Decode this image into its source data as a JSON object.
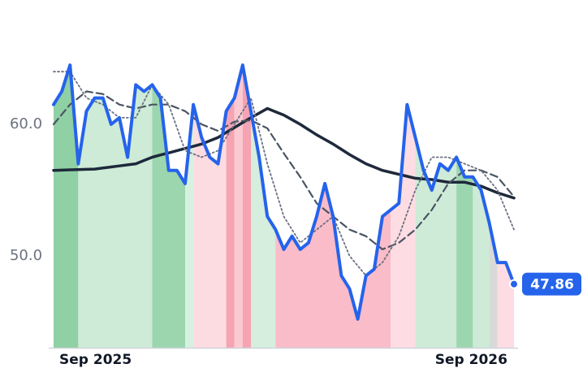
{
  "chart_data": {
    "type": "line",
    "xlim": [
      0,
      56
    ],
    "xticks": [
      {
        "value": 5.1,
        "label": "Sep 2025"
      },
      {
        "value": 50.8,
        "label": "Sep 2026"
      }
    ],
    "ylim": [
      43,
      68
    ],
    "yticks": [
      {
        "value": 50,
        "label": "50.0"
      },
      {
        "value": 60,
        "label": "60.0"
      }
    ],
    "grid": false,
    "regions": [
      {
        "start": 0,
        "end": 3,
        "color": "#8fd0a4"
      },
      {
        "start": 3,
        "end": 12,
        "color": "#cdebd7"
      },
      {
        "start": 12,
        "end": 16,
        "color": "#9cd6ae"
      },
      {
        "start": 16,
        "end": 17,
        "color": "#d8f0e0"
      },
      {
        "start": 17,
        "end": 21,
        "color": "#fcdbe1"
      },
      {
        "start": 21,
        "end": 22,
        "color": "#f6a3b2"
      },
      {
        "start": 22,
        "end": 23,
        "color": "#fbc9d2"
      },
      {
        "start": 23,
        "end": 24,
        "color": "#f6a3b2"
      },
      {
        "start": 24,
        "end": 27,
        "color": "#d5eedd"
      },
      {
        "start": 27,
        "end": 41,
        "color": "#f9bcc8"
      },
      {
        "start": 41,
        "end": 44,
        "color": "#fddde3"
      },
      {
        "start": 44,
        "end": 49,
        "color": "#cdebd7"
      },
      {
        "start": 49,
        "end": 51,
        "color": "#9cd6ae"
      },
      {
        "start": 51,
        "end": 53,
        "color": "#cdebd7"
      },
      {
        "start": 53,
        "end": 54,
        "color": "#d9d9d9"
      },
      {
        "start": 54,
        "end": 56,
        "color": "#fddde3"
      }
    ],
    "series": [
      {
        "color": "#1e293b",
        "style": "solid",
        "width": 3.5,
        "values": [
          56.5,
          56.52,
          56.54,
          56.56,
          56.58,
          56.6,
          56.68,
          56.76,
          56.84,
          56.92,
          57,
          57.25,
          57.5,
          57.67,
          57.83,
          58,
          58.17,
          58.33,
          58.5,
          58.75,
          59,
          59.38,
          59.75,
          60.13,
          60.5,
          60.85,
          61.2,
          60.95,
          60.7,
          60.35,
          60,
          59.6,
          59.2,
          58.85,
          58.5,
          58.1,
          57.7,
          57.35,
          57,
          56.75,
          56.5,
          56.35,
          56.2,
          56.05,
          55.9,
          55.85,
          55.8,
          55.7,
          55.6,
          55.6,
          55.6,
          55.45,
          55.3,
          55.05,
          54.8,
          54.6,
          54.4
        ]
      },
      {
        "color": "#4b5563",
        "style": "dashed",
        "width": 2.2,
        "values": [
          60,
          60.75,
          61.5,
          62,
          62.5,
          62.4,
          62.3,
          61.9,
          61.5,
          61.35,
          61.2,
          61.35,
          61.5,
          61.5,
          61.5,
          61.25,
          61,
          60.5,
          60,
          59.75,
          59.5,
          59.85,
          60.2,
          60.25,
          60.3,
          60,
          59.7,
          58.75,
          57.8,
          56.9,
          56,
          55,
          54,
          53.5,
          53,
          52.5,
          52,
          51.75,
          51.5,
          51,
          50.5,
          50.75,
          51,
          51.5,
          52,
          52.75,
          53.5,
          54.5,
          55.5,
          56,
          56.5,
          56.5,
          56.5,
          56.25,
          56,
          55.25,
          54.5
        ]
      },
      {
        "color": "#6b7280",
        "style": "dotted",
        "width": 1.8,
        "values": [
          64,
          64,
          64,
          63,
          62,
          61.75,
          61.5,
          61,
          60.5,
          60.5,
          60.5,
          61.75,
          63,
          62.25,
          61.5,
          59.75,
          58,
          57.75,
          57.5,
          57.75,
          58,
          59,
          60,
          61,
          62,
          59.5,
          57,
          55,
          53,
          52,
          51,
          51.5,
          52,
          52.5,
          53,
          51.5,
          50,
          49.25,
          48.5,
          49,
          49.5,
          50.5,
          51.5,
          53.25,
          55,
          56.25,
          57.5,
          57.5,
          57.5,
          57.25,
          57,
          56.75,
          56.5,
          55.75,
          55,
          53.5,
          52
        ]
      },
      {
        "color": "#2563eb",
        "style": "solid",
        "width": 4,
        "values": [
          61.5,
          62.5,
          64.5,
          57,
          61,
          62,
          62,
          60,
          60.5,
          57.5,
          63,
          62.5,
          63,
          62,
          56.5,
          56.5,
          55.5,
          61.5,
          59,
          57.5,
          57,
          61,
          62,
          64.5,
          61,
          57.5,
          53,
          52,
          50.5,
          51.5,
          50.5,
          51,
          53,
          55.5,
          53,
          48.5,
          47.5,
          45.2,
          48.5,
          49,
          53,
          53.5,
          54,
          61.5,
          59,
          56.5,
          55,
          57,
          56.5,
          57.5,
          56,
          56,
          55,
          52.5,
          49.5,
          49.5,
          47.86
        ]
      }
    ]
  }
}
